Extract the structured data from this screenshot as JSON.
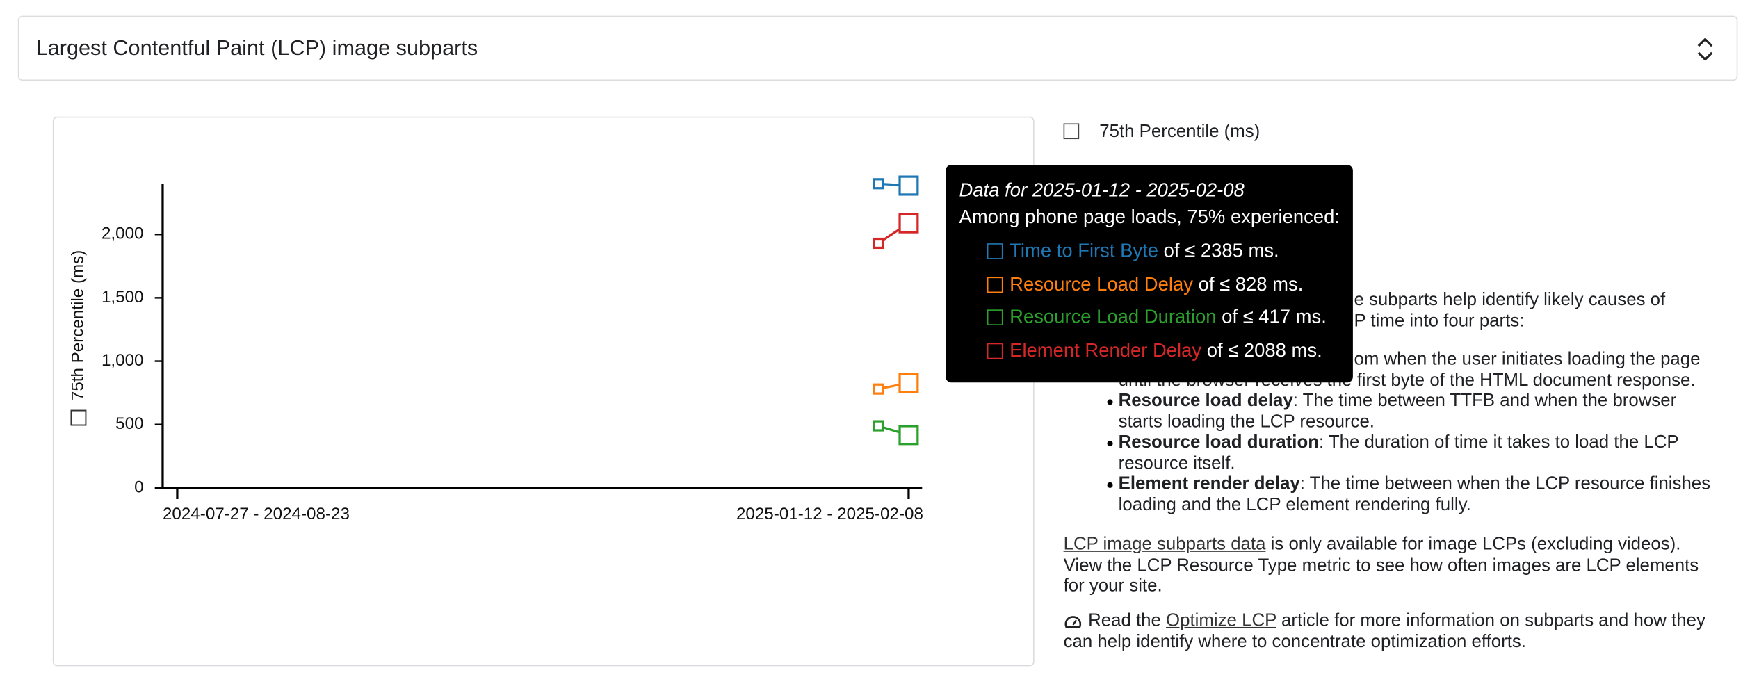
{
  "header": {
    "title": "Largest Contentful Paint (LCP) image subparts"
  },
  "metric_toggle": "75th Percentile (ms)",
  "chart_data": {
    "type": "line",
    "y_label": "75th Percentile (ms)",
    "categories": [
      "2024-07-27 - 2024-08-23",
      null,
      null,
      null,
      null,
      null,
      null,
      null,
      null,
      null,
      null,
      null,
      null,
      null,
      null,
      null,
      null,
      null,
      null,
      null,
      null,
      null,
      null,
      null,
      "2025-01-12 - 2025-02-08"
    ],
    "series": [
      {
        "name": "Time to First Byte",
        "color": "#1f77b4",
        "values": [
          null,
          null,
          null,
          null,
          null,
          null,
          null,
          null,
          null,
          null,
          null,
          null,
          null,
          null,
          null,
          null,
          null,
          null,
          null,
          null,
          null,
          null,
          null,
          2400,
          2385
        ]
      },
      {
        "name": "Resource Load Delay",
        "color": "#ff7f0e",
        "values": [
          null,
          null,
          null,
          null,
          null,
          null,
          null,
          null,
          null,
          null,
          null,
          null,
          null,
          null,
          null,
          null,
          null,
          null,
          null,
          null,
          null,
          null,
          null,
          780,
          828
        ]
      },
      {
        "name": "Resource Load Duration",
        "color": "#2ca02c",
        "values": [
          null,
          null,
          null,
          null,
          null,
          null,
          null,
          null,
          null,
          null,
          null,
          null,
          null,
          null,
          null,
          null,
          null,
          null,
          null,
          null,
          null,
          null,
          null,
          490,
          417
        ]
      },
      {
        "name": "Element Render Delay",
        "color": "#d62728",
        "values": [
          null,
          null,
          null,
          null,
          null,
          null,
          null,
          null,
          null,
          null,
          null,
          null,
          null,
          null,
          null,
          null,
          null,
          null,
          null,
          null,
          null,
          null,
          null,
          1930,
          2088
        ]
      }
    ],
    "ylim": [
      0,
      2400
    ],
    "yticks": [
      0,
      500,
      {
        "value": 1000,
        "label": "1,000"
      },
      {
        "value": 1500,
        "label": "1,500"
      },
      {
        "value": 2000,
        "label": "2,000"
      }
    ],
    "grid": false
  },
  "tooltip": {
    "title": "Data for 2025-01-12 - 2025-02-08",
    "intro": "Among phone page loads, 75% experienced:",
    "items": [
      "of ≤ 2385 ms.",
      "of ≤ 828 ms.",
      "of ≤ 417 ms.",
      "of ≤ 2088 ms."
    ]
  },
  "description": {
    "fragments": [
      "e subparts help identify likely causes of",
      "P time into four parts:",
      "om when the user initiates loading the page",
      "until the browser receives the first byte of the HTML document response."
    ],
    "bullets": [
      {
        "term": "Resource load delay",
        "text": ": The time between TTFB and when the browser starts loading the LCP resource."
      },
      {
        "term": "Resource load duration",
        "text": ": The duration of time it takes to load the LCP resource itself."
      },
      {
        "term": "Element render delay",
        "text": ": The time between when the LCP resource finishes loading and the LCP element rendering fully."
      }
    ],
    "note": {
      "link": "LCP image subparts data",
      "text": " is only available for image LCPs (excluding videos). View the LCP Resource Type metric to see how often images are LCP elements for your site."
    },
    "tip": {
      "prefix": "Read the ",
      "link": "Optimize LCP",
      "text": " article for more information on subparts and how they can help identify where to concentrate optimization efforts."
    }
  }
}
